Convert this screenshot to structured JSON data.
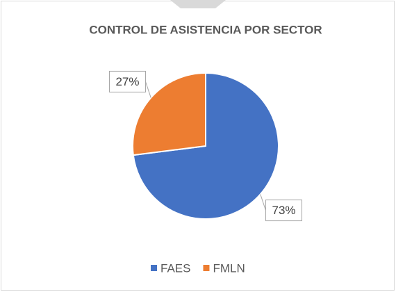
{
  "chart_data": {
    "type": "pie",
    "title": "CONTROL DE ASISTENCIA POR SECTOR",
    "categories": [
      "FAES",
      "FMLN"
    ],
    "values": [
      73,
      27
    ],
    "value_labels": [
      "73%",
      "27%"
    ],
    "colors": [
      "#4472c4",
      "#ed7d31"
    ],
    "legend": "bottom"
  }
}
